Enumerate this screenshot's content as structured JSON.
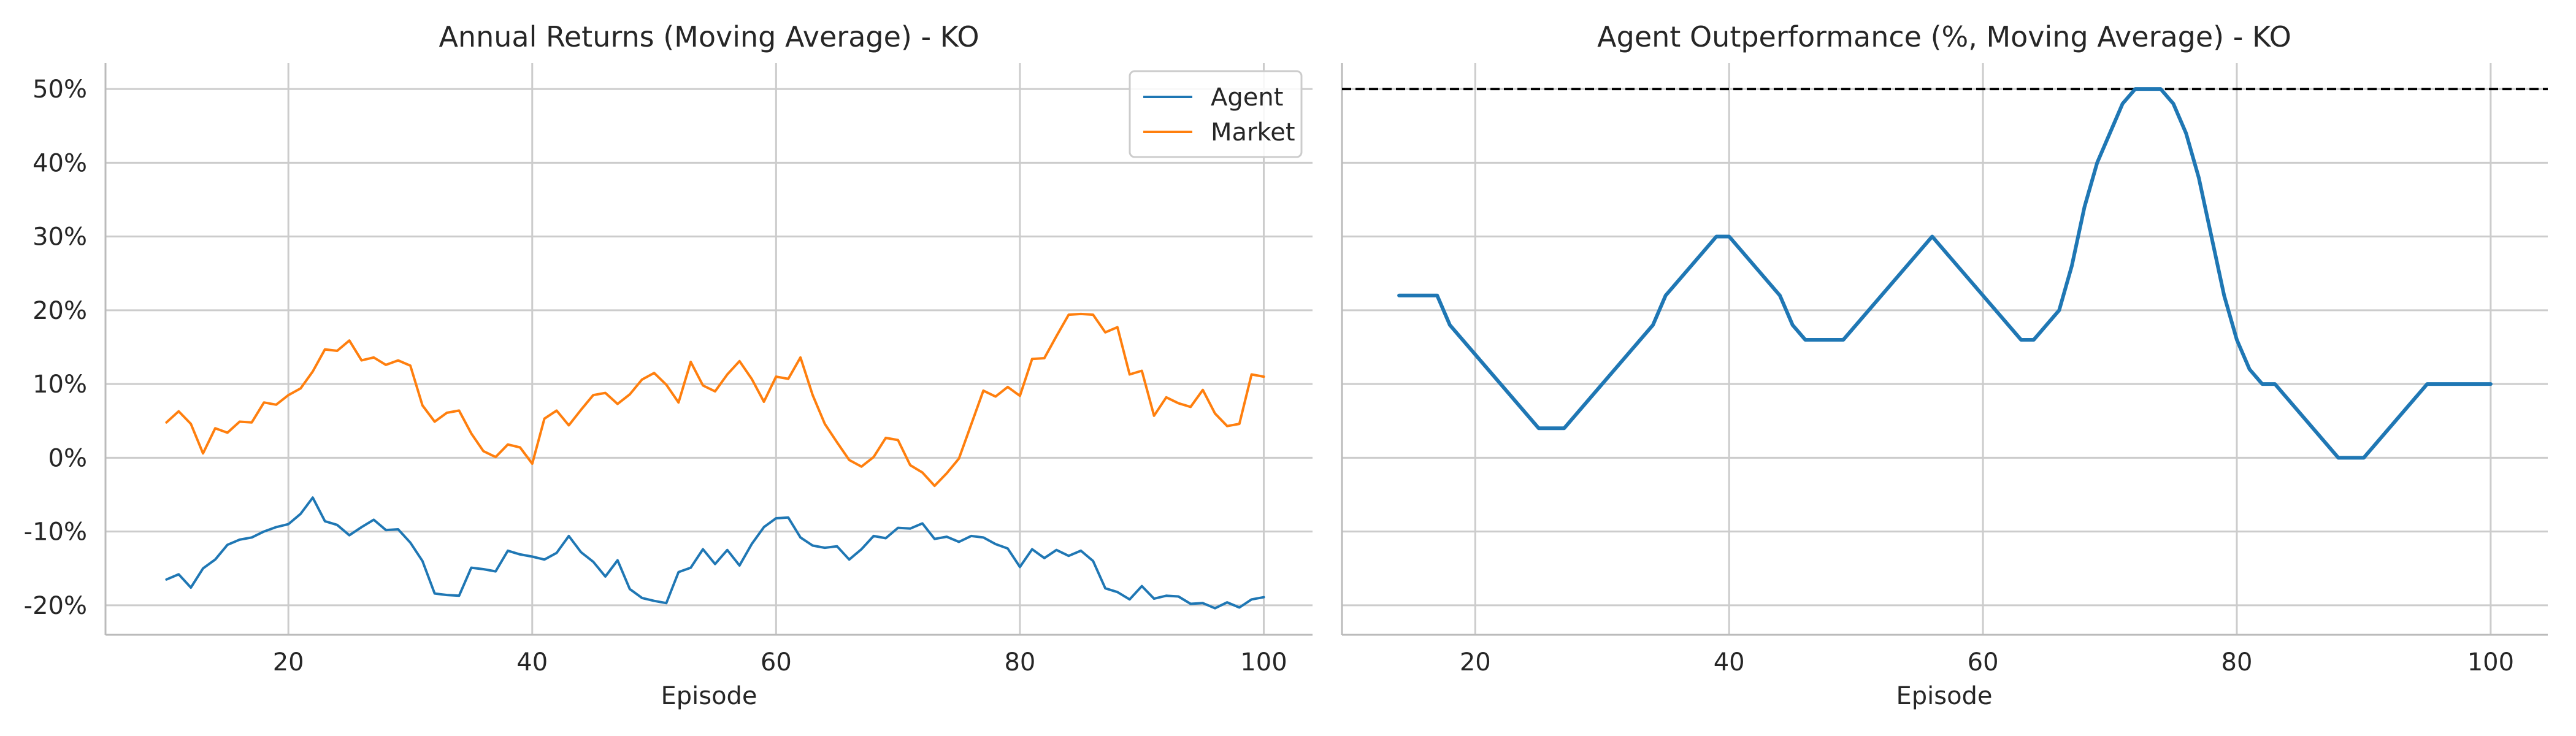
{
  "colors": {
    "agent": "#1f77b4",
    "market": "#ff7f0e",
    "grid": "#cccccc",
    "spine": "#bbbbbb",
    "reference": "#000000"
  },
  "chart_data": [
    {
      "type": "line",
      "title": "Annual Returns (Moving Average) - KO",
      "xlabel": "Episode",
      "ylabel": "",
      "xlim": [
        5,
        104
      ],
      "ylim": [
        -24,
        53.5
      ],
      "xticks": [
        20,
        40,
        60,
        80,
        100
      ],
      "xtick_labels": [
        "20",
        "40",
        "60",
        "80",
        "100"
      ],
      "yticks": [
        -20,
        -10,
        0,
        10,
        20,
        30,
        40,
        50
      ],
      "ytick_labels": [
        "-20%",
        "-10%",
        "0%",
        "10%",
        "20%",
        "30%",
        "40%",
        "50%"
      ],
      "grid": true,
      "legend": "top-right",
      "x": [
        10,
        11,
        12,
        13,
        14,
        15,
        16,
        17,
        18,
        19,
        20,
        21,
        22,
        23,
        24,
        25,
        26,
        27,
        28,
        29,
        30,
        31,
        32,
        33,
        34,
        35,
        36,
        37,
        38,
        39,
        40,
        41,
        42,
        43,
        44,
        45,
        46,
        47,
        48,
        49,
        50,
        51,
        52,
        53,
        54,
        55,
        56,
        57,
        58,
        59,
        60,
        61,
        62,
        63,
        64,
        65,
        66,
        67,
        68,
        69,
        70,
        71,
        72,
        73,
        74,
        75,
        76,
        77,
        78,
        79,
        80,
        81,
        82,
        83,
        84,
        85,
        86,
        87,
        88,
        89,
        90,
        91,
        92,
        93,
        94,
        95,
        96,
        97,
        98,
        99,
        100
      ],
      "series": [
        {
          "name": "Agent",
          "color_key": "agent",
          "values": [
            -16.5,
            -15.8,
            -17.6,
            -15,
            -13.8,
            -11.8,
            -11.1,
            -10.8,
            -10,
            -9.4,
            -9,
            -7.6,
            -5.4,
            -8.6,
            -9.1,
            -10.5,
            -9.4,
            -8.4,
            -9.8,
            -9.7,
            -11.5,
            -14,
            -18.4,
            -18.6,
            -18.7,
            -14.9,
            -15.1,
            -15.4,
            -12.6,
            -13.1,
            -13.4,
            -13.8,
            -12.9,
            -10.6,
            -12.8,
            -14.1,
            -16.1,
            -13.9,
            -17.8,
            -19,
            -19.4,
            -19.7,
            -15.5,
            -14.9,
            -12.4,
            -14.4,
            -12.5,
            -14.6,
            -11.7,
            -9.4,
            -8.2,
            -8.1,
            -10.8,
            -11.9,
            -12.2,
            -12,
            -13.8,
            -12.4,
            -10.6,
            -10.9,
            -9.5,
            -9.6,
            -8.9,
            -11,
            -10.7,
            -11.4,
            -10.6,
            -10.8,
            -11.7,
            -12.3,
            -14.8,
            -12.4,
            -13.6,
            -12.5,
            -13.3,
            -12.6,
            -14,
            -17.7,
            -18.2,
            -19.2,
            -17.4,
            -19.1,
            -18.7,
            -18.8,
            -19.8,
            -19.7,
            -20.4,
            -19.6,
            -20.3,
            -19.2,
            -18.9
          ]
        },
        {
          "name": "Market",
          "color_key": "market",
          "values": [
            4.8,
            6.3,
            4.6,
            0.6,
            4,
            3.4,
            4.9,
            4.8,
            7.5,
            7.2,
            8.5,
            9.4,
            11.7,
            14.7,
            14.5,
            15.9,
            13.2,
            13.6,
            12.6,
            13.2,
            12.5,
            7.1,
            4.9,
            6.1,
            6.4,
            3.3,
            0.9,
            0.1,
            1.8,
            1.4,
            -0.8,
            5.3,
            6.4,
            4.4,
            6.5,
            8.5,
            8.8,
            7.3,
            8.6,
            10.6,
            11.5,
            9.9,
            7.5,
            13,
            9.8,
            9,
            11.3,
            13.1,
            10.7,
            7.6,
            11,
            10.7,
            13.6,
            8.5,
            4.6,
            2.1,
            -0.3,
            -1.2,
            0.1,
            2.7,
            2.4,
            -1,
            -2,
            -3.8,
            -2.1,
            -0.1,
            4.5,
            9.1,
            8.3,
            9.6,
            8.4,
            13.4,
            13.5,
            16.5,
            19.4,
            19.5,
            19.4,
            17,
            17.7,
            11.3,
            11.8,
            5.7,
            8.2,
            7.4,
            6.9,
            9.2,
            6,
            4.3,
            4.6,
            11.3,
            11
          ]
        }
      ]
    },
    {
      "type": "line",
      "title": "Agent Outperformance (%, Moving Average) - KO",
      "xlabel": "Episode",
      "ylabel": "",
      "xlim": [
        9.5,
        104.5
      ],
      "ylim": [
        -24,
        53.5
      ],
      "xticks": [
        20,
        40,
        60,
        80,
        100
      ],
      "xtick_labels": [
        "20",
        "40",
        "60",
        "80",
        "100"
      ],
      "grid": true,
      "reference_line": {
        "y": 50,
        "style": "dashed"
      },
      "x": [
        14,
        17,
        18,
        25,
        27,
        34,
        35,
        39,
        40,
        44,
        45,
        46,
        49,
        56,
        63,
        64,
        66,
        67,
        68,
        69,
        71,
        72,
        73,
        74,
        75,
        76,
        77,
        78,
        79,
        80,
        81,
        82,
        83,
        88,
        90,
        95,
        100
      ],
      "series": [
        {
          "name": "",
          "color_key": "agent",
          "values": [
            22,
            22,
            18,
            4,
            4,
            18,
            22,
            30,
            30,
            22,
            18,
            16,
            16,
            30,
            16,
            16,
            20,
            26,
            34,
            40,
            48,
            50,
            50,
            50,
            48,
            44,
            38,
            30,
            22,
            16,
            12,
            10,
            10,
            0,
            0,
            10,
            10
          ]
        }
      ]
    }
  ]
}
